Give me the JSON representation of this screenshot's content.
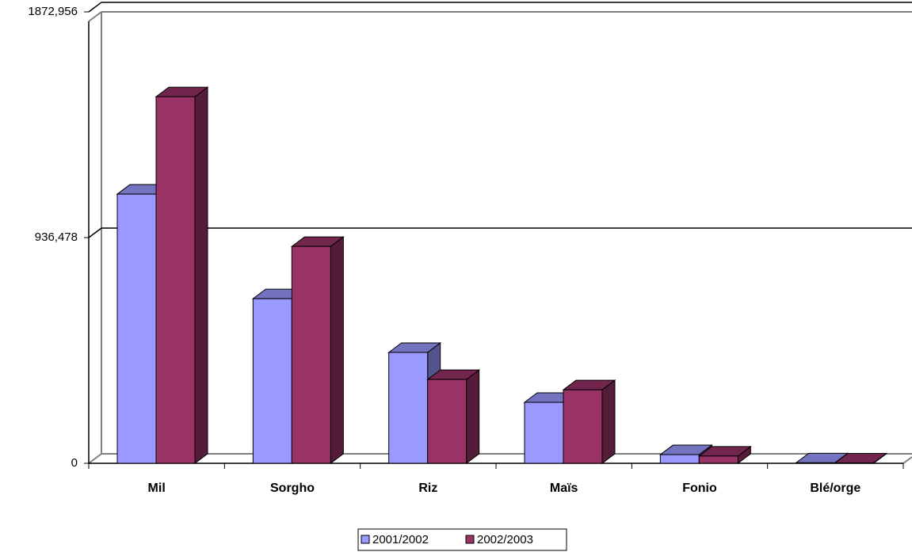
{
  "chart_data": {
    "type": "bar3d",
    "categories": [
      "Mil",
      "Sorgho",
      "Riz",
      "Maïs",
      "Fonio",
      "Blé/orge"
    ],
    "series": [
      {
        "name": "2001/2002",
        "color": "#9999ff",
        "values": [
          1117000,
          683000,
          460000,
          253000,
          36000,
          2000
        ]
      },
      {
        "name": "2002/2003",
        "color": "#993366",
        "values": [
          1521000,
          900000,
          348000,
          305000,
          30000,
          1500
        ]
      }
    ],
    "ylim": [
      0,
      1872956
    ],
    "yticks": [
      0,
      {
        "value": 936478,
        "label": "936,478"
      },
      {
        "value": 1872956,
        "label": "1872,956"
      }
    ],
    "grid": true
  }
}
